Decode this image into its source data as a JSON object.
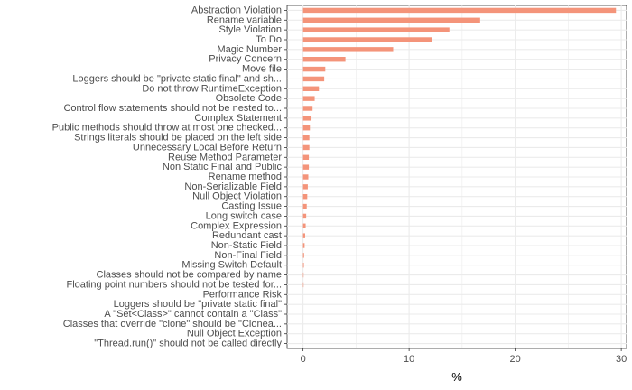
{
  "chart_data": {
    "type": "bar",
    "orientation": "horizontal",
    "title": "",
    "xlabel": "%",
    "ylabel": "",
    "xlim": [
      -1.5,
      30.5
    ],
    "x_ticks": [
      0,
      10,
      20,
      30
    ],
    "grid": true,
    "bar_color": "#f4947a",
    "grid_color": "#ebebeb",
    "categories": [
      "Abstraction Violation",
      "Rename variable",
      "Style Violation",
      "To Do",
      "Magic Number",
      "Privacy Concern",
      "Move file",
      "Loggers should be \"private static final\" and sh...",
      "Do not throw RuntimeException",
      "Obsolete Code",
      "Control flow statements should not be nested to...",
      "Complex Statement",
      "Public methods should throw at most one checked...",
      "Strings literals should be placed on the left side",
      "Unnecessary Local Before Return",
      "Reuse Method Parameter",
      "Non Static Final and Public",
      "Rename method",
      "Non-Serializable Field",
      "Null Object Violation",
      "Casting Issue",
      "Long switch case",
      "Complex Expression",
      "Redundant cast",
      "Non-Static Field",
      "Non-Final Field",
      "Missing Switch Default",
      "Classes should not be compared by name",
      "Floating point numbers should not be tested for...",
      "Performance Risk",
      "Loggers should be \"private static final\"",
      "A \"Set<Class>\" cannot contain a \"Class\"",
      "Classes that override \"clone\" should be \"Clonea...",
      "Null Object Exception",
      "\"Thread.run()\" should not be called directly"
    ],
    "values": [
      29.5,
      16.7,
      13.8,
      12.2,
      8.5,
      4.0,
      2.1,
      2.0,
      1.5,
      1.1,
      0.9,
      0.8,
      0.65,
      0.6,
      0.6,
      0.55,
      0.55,
      0.5,
      0.45,
      0.4,
      0.35,
      0.3,
      0.25,
      0.2,
      0.15,
      0.1,
      0.08,
      0.05,
      0.05,
      0.0,
      0.0,
      0.0,
      0.0,
      0.0,
      0.0
    ]
  }
}
